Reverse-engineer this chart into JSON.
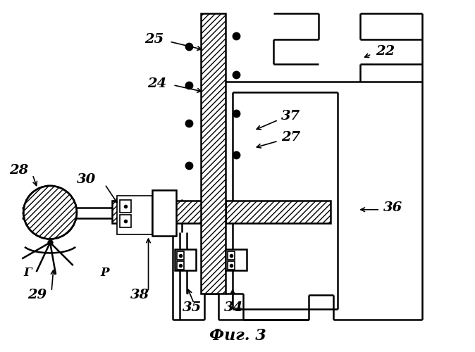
{
  "bg_color": "#ffffff",
  "lc": "#000000",
  "title": "Фиг. 3",
  "lw": 1.8,
  "lw_thin": 1.2
}
